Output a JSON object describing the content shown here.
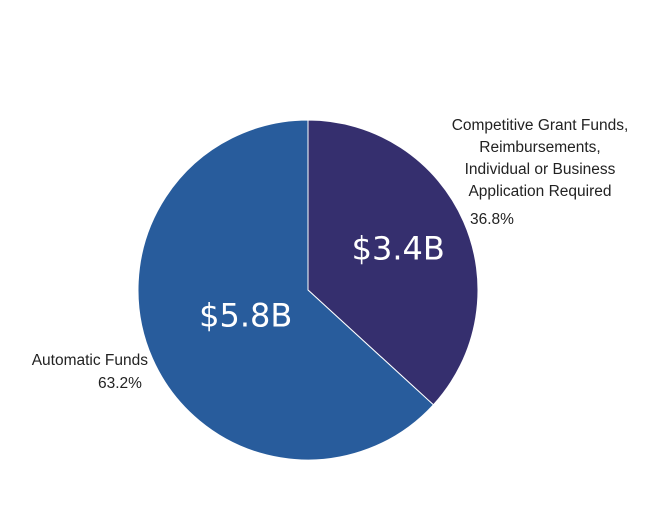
{
  "chart_data": {
    "type": "pie",
    "title": "",
    "slices": [
      {
        "label": "Competitive Grant Funds, Reimbursements, Individual or Business Application Required",
        "label_lines": [
          "Competitive Grant Funds,",
          "Reimbursements,",
          "Individual or Business",
          "Application Required"
        ],
        "value_label": "$3.4B",
        "value": 3.4,
        "percent": 36.8,
        "percent_label": "36.8%",
        "color": "#352f6e"
      },
      {
        "label": "Automatic Funds",
        "label_lines": [
          "Automatic Funds"
        ],
        "value_label": "$5.8B",
        "value": 5.8,
        "percent": 63.2,
        "percent_label": "63.2%",
        "color": "#285c9c"
      }
    ],
    "start_angle": "12 o'clock",
    "direction": "clockwise",
    "legend": "none"
  }
}
